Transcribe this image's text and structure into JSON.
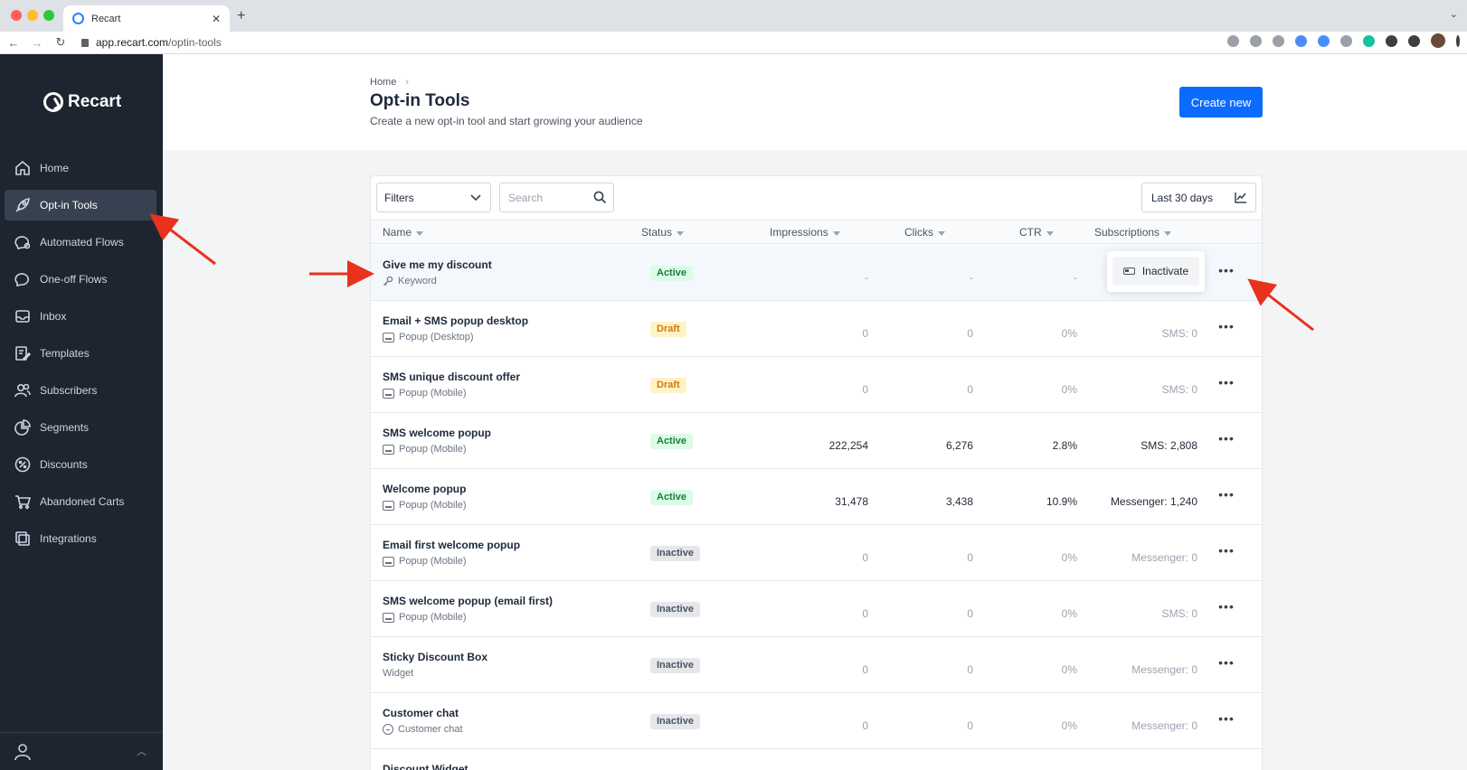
{
  "browser": {
    "tab_title": "Recart",
    "url_domain": "app.recart.com",
    "url_path": "/optin-tools"
  },
  "sidebar": {
    "brand": "Recart",
    "items": [
      {
        "label": "Home",
        "icon": "home-icon"
      },
      {
        "label": "Opt-in Tools",
        "icon": "rocket-icon",
        "active": true
      },
      {
        "label": "Automated Flows",
        "icon": "flow-icon"
      },
      {
        "label": "One-off Flows",
        "icon": "chat-bubble-icon"
      },
      {
        "label": "Inbox",
        "icon": "inbox-icon"
      },
      {
        "label": "Templates",
        "icon": "templates-icon"
      },
      {
        "label": "Subscribers",
        "icon": "users-icon"
      },
      {
        "label": "Segments",
        "icon": "pie-icon"
      },
      {
        "label": "Discounts",
        "icon": "percent-icon"
      },
      {
        "label": "Abandoned Carts",
        "icon": "cart-icon"
      },
      {
        "label": "Integrations",
        "icon": "integrations-icon"
      }
    ]
  },
  "header": {
    "breadcrumb": "Home",
    "title": "Opt-in Tools",
    "subtitle": "Create a new opt-in tool and start growing your audience",
    "create_label": "Create new"
  },
  "toolbar": {
    "filters_label": "Filters",
    "search_placeholder": "Search",
    "date_range_label": "Last 30 days"
  },
  "table": {
    "columns": {
      "name": "Name",
      "status": "Status",
      "impressions": "Impressions",
      "clicks": "Clicks",
      "ctr": "CTR",
      "subscriptions": "Subscriptions"
    },
    "popover_label": "Inactivate",
    "rows": [
      {
        "name": "Give me my discount",
        "type": "Keyword",
        "type_icon": "key",
        "status": "Active",
        "status_class": "active",
        "impressions": "-",
        "clicks": "-",
        "ctr": "-",
        "subscriptions": "",
        "strong": false
      },
      {
        "name": "Email + SMS popup desktop",
        "type": "Popup (Desktop)",
        "type_icon": "popup",
        "status": "Draft",
        "status_class": "draft",
        "impressions": "0",
        "clicks": "0",
        "ctr": "0%",
        "subscriptions": "SMS: 0",
        "strong": false
      },
      {
        "name": "SMS unique discount offer",
        "type": "Popup (Mobile)",
        "type_icon": "popup",
        "status": "Draft",
        "status_class": "draft",
        "impressions": "0",
        "clicks": "0",
        "ctr": "0%",
        "subscriptions": "SMS: 0",
        "strong": false
      },
      {
        "name": "SMS welcome popup",
        "type": "Popup (Mobile)",
        "type_icon": "popup",
        "status": "Active",
        "status_class": "active",
        "impressions": "222,254",
        "clicks": "6,276",
        "ctr": "2.8%",
        "subscriptions": "SMS: 2,808",
        "strong": true
      },
      {
        "name": "Welcome popup",
        "type": "Popup (Mobile)",
        "type_icon": "popup",
        "status": "Active",
        "status_class": "active",
        "impressions": "31,478",
        "clicks": "3,438",
        "ctr": "10.9%",
        "subscriptions": "Messenger: 1,240",
        "strong": true
      },
      {
        "name": "Email first welcome popup",
        "type": "Popup (Mobile)",
        "type_icon": "popup",
        "status": "Inactive",
        "status_class": "inactive",
        "impressions": "0",
        "clicks": "0",
        "ctr": "0%",
        "subscriptions": "Messenger: 0",
        "strong": false
      },
      {
        "name": "SMS welcome popup (email first)",
        "type": "Popup (Mobile)",
        "type_icon": "popup",
        "status": "Inactive",
        "status_class": "inactive",
        "impressions": "0",
        "clicks": "0",
        "ctr": "0%",
        "subscriptions": "SMS: 0",
        "strong": false
      },
      {
        "name": "Sticky Discount Box",
        "type": "Widget",
        "type_icon": "none",
        "status": "Inactive",
        "status_class": "inactive",
        "impressions": "0",
        "clicks": "0",
        "ctr": "0%",
        "subscriptions": "Messenger: 0",
        "strong": false
      },
      {
        "name": "Customer chat",
        "type": "Customer chat",
        "type_icon": "chat",
        "status": "Inactive",
        "status_class": "inactive",
        "impressions": "0",
        "clicks": "0",
        "ctr": "0%",
        "subscriptions": "Messenger: 0",
        "strong": false
      },
      {
        "name": "Discount Widget",
        "type": "",
        "type_icon": "none",
        "status": "",
        "status_class": "",
        "impressions": "",
        "clicks": "",
        "ctr": "",
        "subscriptions": "",
        "strong": false
      }
    ]
  },
  "colors": {
    "sidebar_bg": "#1d2530",
    "primary": "#0a6cff",
    "annotation_arrow": "#e8321e"
  }
}
